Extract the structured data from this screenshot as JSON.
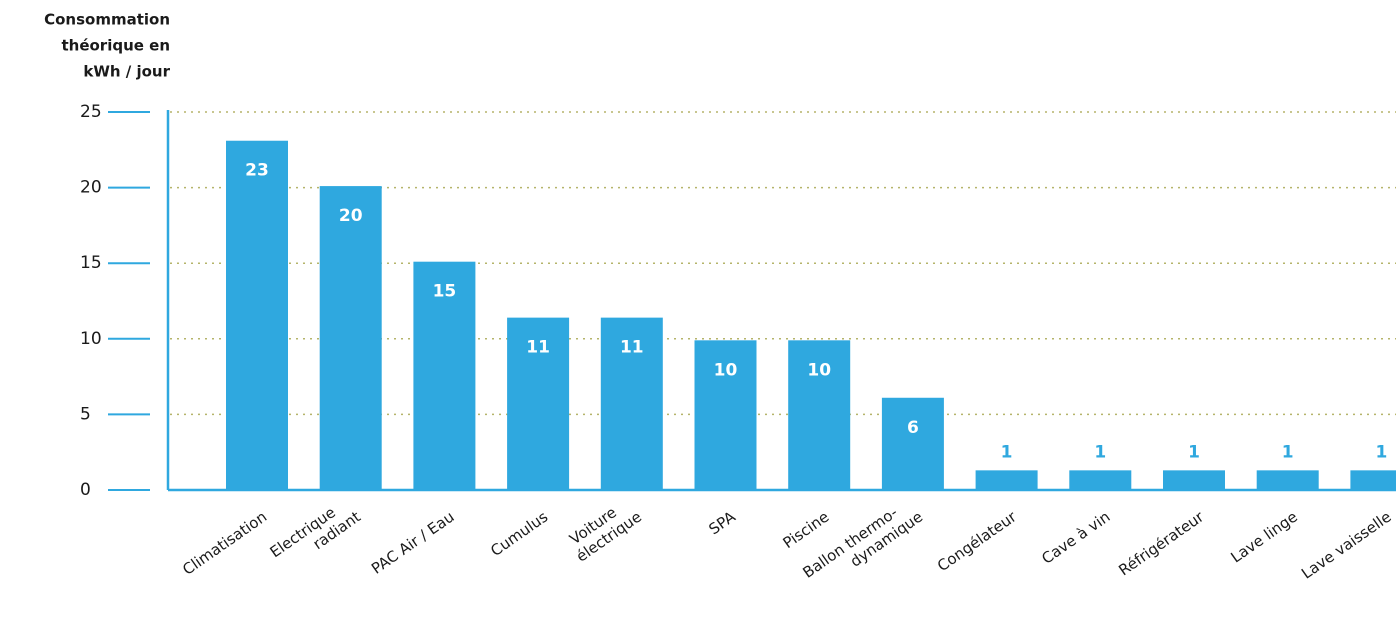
{
  "chart_data": {
    "type": "bar",
    "ylabel": [
      "Consommation",
      "théorique en",
      "kWh / jour"
    ],
    "categories": [
      [
        "Climatisation"
      ],
      [
        "Electrique",
        "radiant"
      ],
      [
        "PAC Air / Eau"
      ],
      [
        "Cumulus"
      ],
      [
        "Voiture",
        "électrique"
      ],
      [
        "SPA"
      ],
      [
        "Piscine"
      ],
      [
        "Ballon thermo-",
        "dynamique"
      ],
      [
        "Congélateur"
      ],
      [
        "Cave à vin"
      ],
      [
        "Réfrigérateur"
      ],
      [
        "Lave linge"
      ],
      [
        "Lave vaisselle"
      ]
    ],
    "values": [
      23.1,
      20.1,
      15.1,
      11.4,
      11.4,
      9.9,
      9.9,
      6.1,
      1.3,
      1.3,
      1.3,
      1.3,
      1.3
    ],
    "value_labels": [
      "23",
      "20",
      "15",
      "11",
      "11",
      "10",
      "10",
      "6",
      "1",
      "1",
      "1",
      "1",
      "1"
    ],
    "color": "#2fa8df",
    "ylim": [
      0,
      25
    ],
    "yticks": [
      0,
      5,
      10,
      15,
      20,
      25
    ],
    "grid": true
  }
}
